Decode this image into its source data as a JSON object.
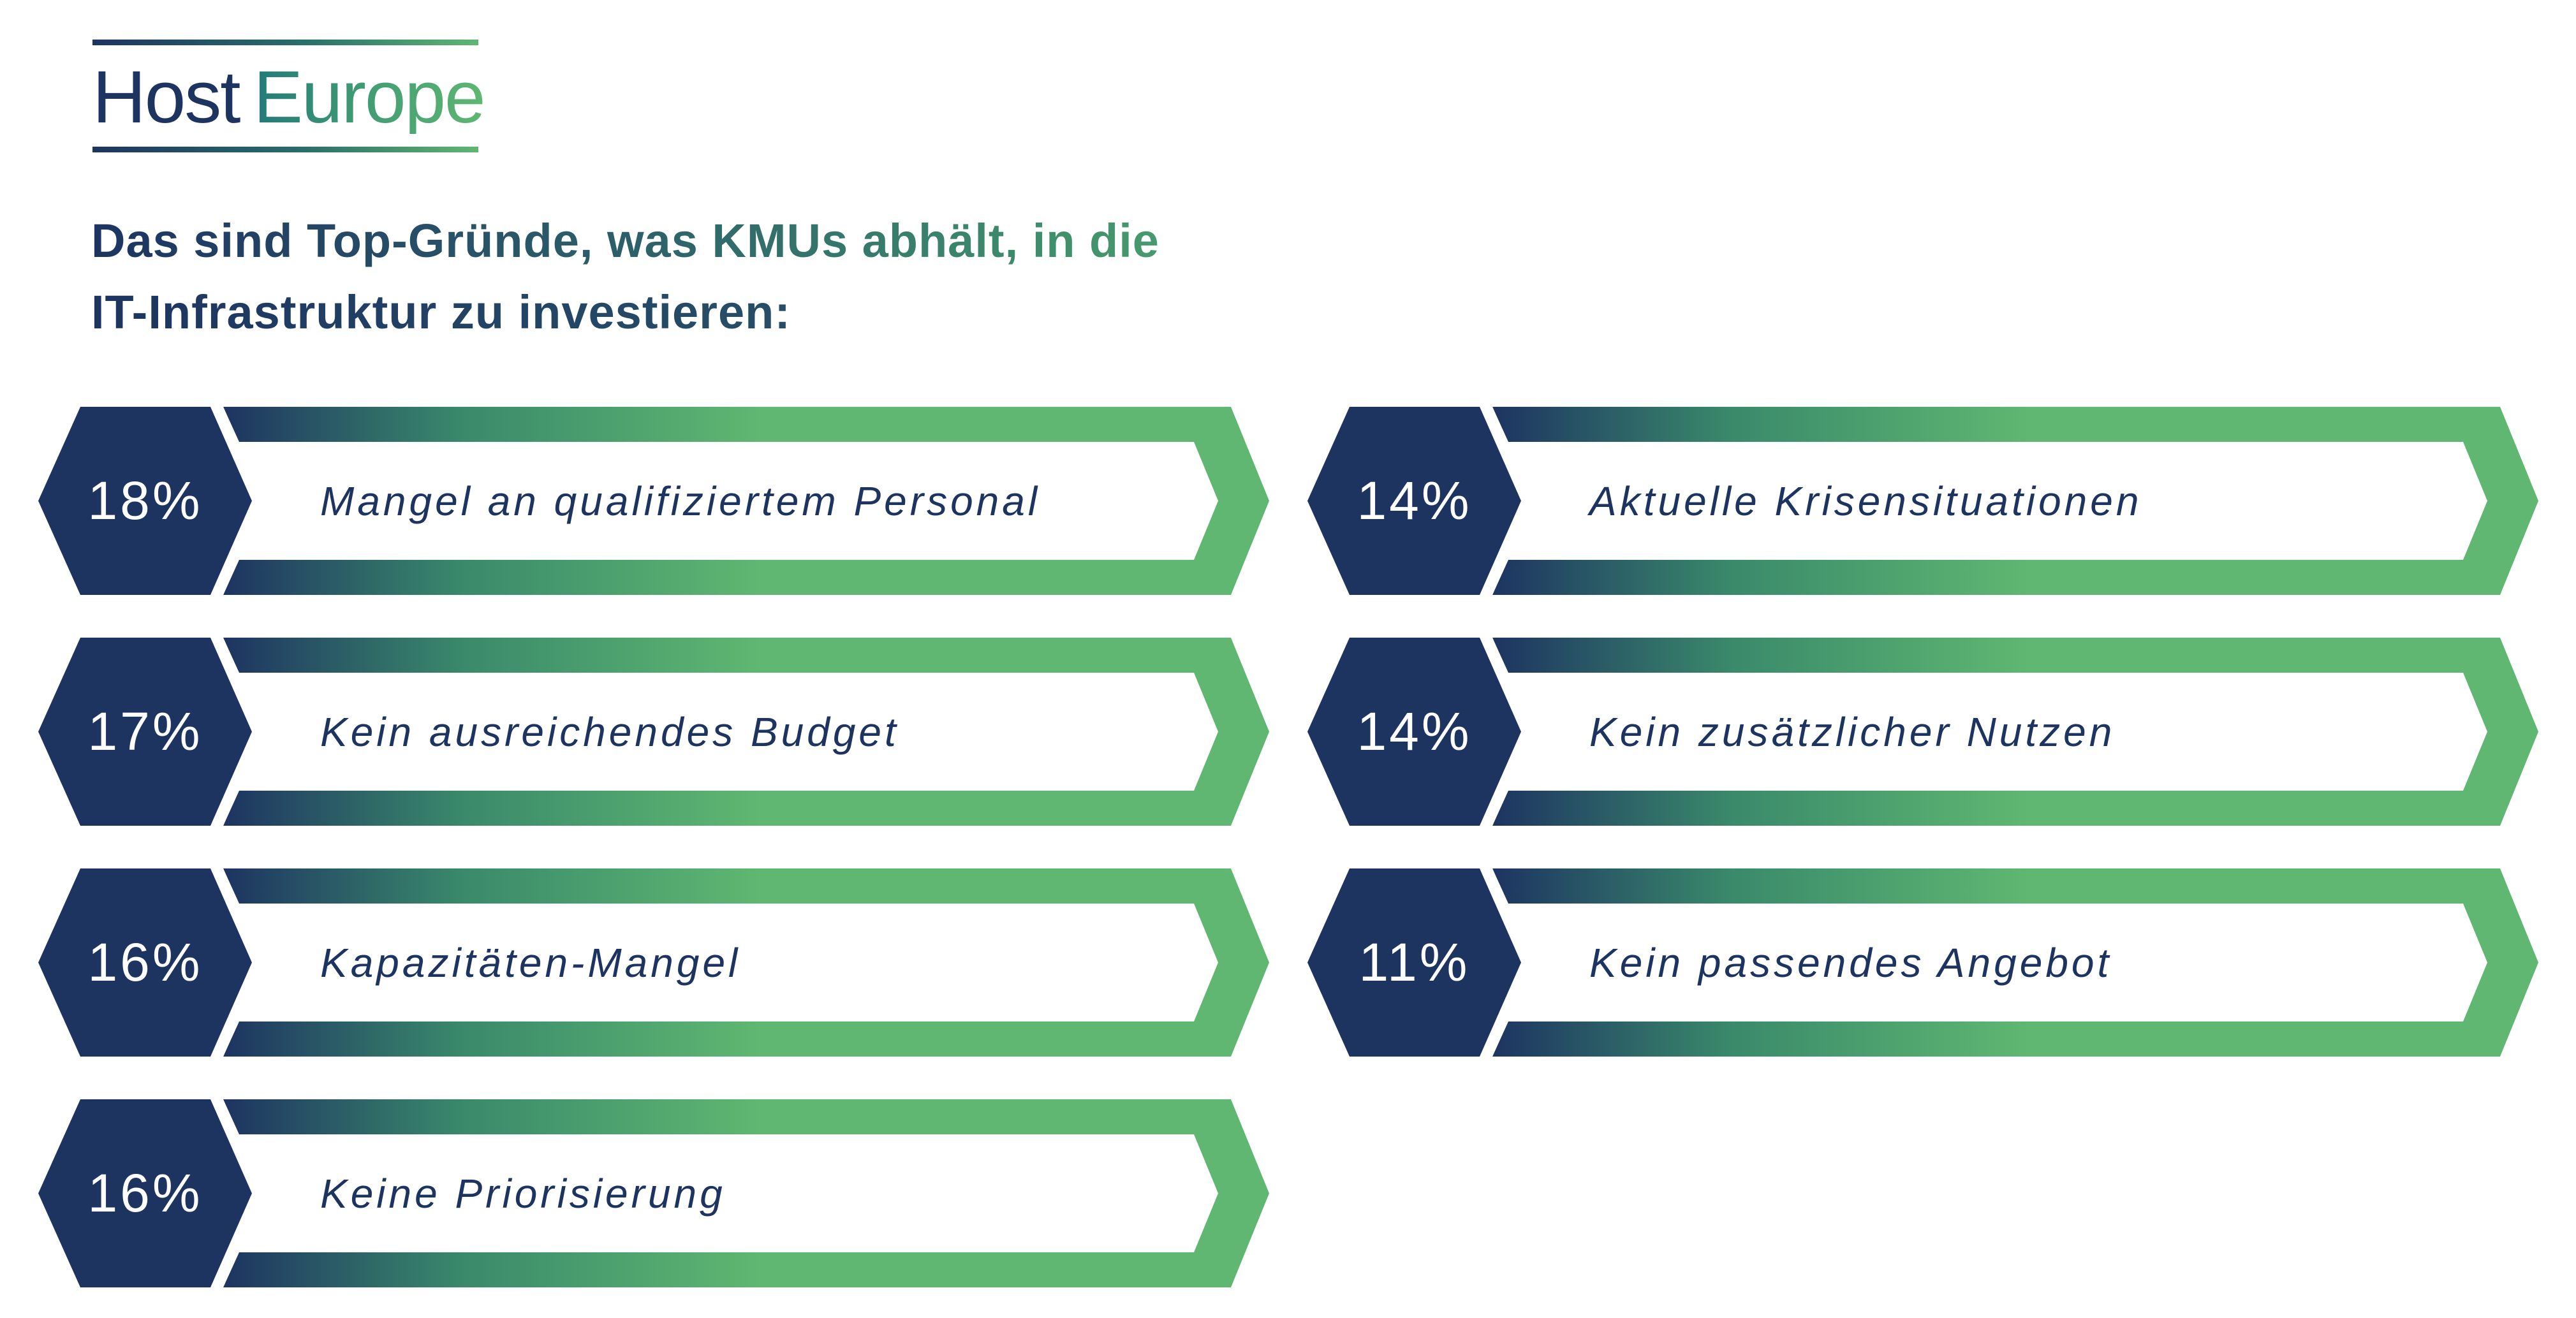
{
  "logo": {
    "host": "Host",
    "europe": "Europe"
  },
  "headline": {
    "line1_part1": "Das sind Top-Gründe, was KMUs abhält, in die",
    "line2_part1": "IT-Infrastruktur zu investieren:"
  },
  "colors": {
    "navy": "#1d3461",
    "green": "#5fb771",
    "white": "#ffffff"
  },
  "chart_data": {
    "type": "table",
    "title": "Das sind Top-Gründe, was KMUs abhält, in die IT-Infrastruktur zu investieren:",
    "items": [
      {
        "percent": "18%",
        "value": 18,
        "label": "Mangel an qualifiziertem Personal"
      },
      {
        "percent": "17%",
        "value": 17,
        "label": "Kein ausreichendes Budget"
      },
      {
        "percent": "16%",
        "value": 16,
        "label": "Kapazitäten-Mangel"
      },
      {
        "percent": "16%",
        "value": 16,
        "label": "Keine Priorisierung"
      },
      {
        "percent": "14%",
        "value": 14,
        "label": "Aktuelle Krisensituationen"
      },
      {
        "percent": "14%",
        "value": 14,
        "label": "Kein zusätzlicher Nutzen"
      },
      {
        "percent": "11%",
        "value": 11,
        "label": "Kein passendes Angebot"
      }
    ]
  }
}
